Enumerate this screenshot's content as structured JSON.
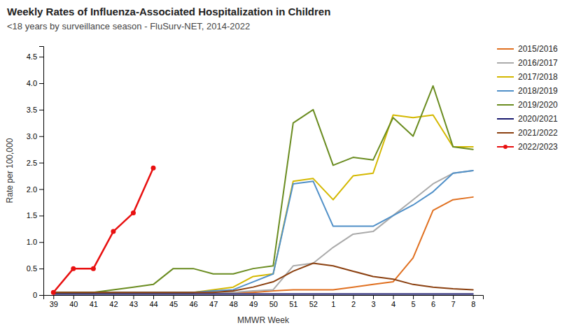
{
  "chart_data": {
    "type": "line",
    "title": "Weekly Rates of Influenza-Associated Hospitalization in Children",
    "subtitle": "<18 years by surveillance season - FluSurv-NET, 2014-2022",
    "xlabel": "MMWR Week",
    "ylabel": "Rate per 100,000",
    "categories": [
      "39",
      "40",
      "41",
      "42",
      "43",
      "44",
      "45",
      "46",
      "47",
      "48",
      "49",
      "50",
      "51",
      "52",
      "1",
      "2",
      "3",
      "4",
      "5",
      "6",
      "7",
      "8"
    ],
    "ylim": [
      0,
      4.7
    ],
    "yticks": [
      0,
      0.5,
      {
        "value": 1,
        "label": "1.0"
      },
      1.5,
      {
        "value": 2,
        "label": "2.0"
      },
      2.5,
      {
        "value": 3,
        "label": "3.0"
      },
      3.5,
      {
        "value": 4,
        "label": "4.0"
      },
      4.5
    ],
    "grid": false,
    "legend": "right",
    "series": [
      {
        "name": "2015/2016",
        "color": "#E07020",
        "values": [
          0.05,
          0.05,
          0.05,
          0.05,
          0.05,
          0.05,
          0.05,
          0.05,
          0.05,
          0.05,
          0.05,
          0.08,
          0.1,
          0.1,
          0.1,
          0.15,
          0.2,
          0.25,
          0.7,
          1.6,
          1.8,
          1.85
        ]
      },
      {
        "name": "2016/2017",
        "color": "#AAAAAA",
        "values": [
          0.05,
          0.05,
          0.05,
          0.05,
          0.05,
          0.05,
          0.05,
          0.05,
          0.05,
          0.05,
          0.08,
          0.1,
          0.55,
          0.6,
          0.9,
          1.15,
          1.2,
          1.5,
          1.8,
          2.1,
          2.3,
          2.35
        ]
      },
      {
        "name": "2017/2018",
        "color": "#D4B800",
        "values": [
          0.05,
          0.05,
          0.05,
          0.05,
          0.05,
          0.05,
          0.05,
          0.05,
          0.1,
          0.15,
          0.35,
          0.4,
          2.15,
          2.2,
          1.8,
          2.25,
          2.3,
          3.4,
          3.35,
          3.4,
          2.8,
          2.8
        ]
      },
      {
        "name": "2018/2019",
        "color": "#5090C8",
        "values": [
          0.05,
          0.05,
          0.05,
          0.05,
          0.05,
          0.05,
          0.05,
          0.05,
          0.08,
          0.1,
          0.25,
          0.4,
          2.1,
          2.15,
          1.3,
          1.3,
          1.3,
          1.5,
          1.7,
          1.95,
          2.3,
          2.35
        ]
      },
      {
        "name": "2019/2020",
        "color": "#6A8C20",
        "values": [
          0.05,
          0.05,
          0.05,
          0.1,
          0.15,
          0.2,
          0.5,
          0.5,
          0.4,
          0.4,
          0.5,
          0.55,
          3.25,
          3.5,
          2.45,
          2.6,
          2.55,
          3.35,
          3.0,
          3.95,
          2.8,
          2.75
        ]
      },
      {
        "name": "2020/2021",
        "color": "#1A1A6E",
        "values": [
          0.02,
          0.02,
          0.02,
          0.02,
          0.02,
          0.02,
          0.02,
          0.02,
          0.02,
          0.02,
          0.02,
          0.02,
          0.02,
          0.02,
          0.02,
          0.02,
          0.02,
          0.02,
          0.02,
          0.02,
          0.02,
          0.02
        ]
      },
      {
        "name": "2021/2022",
        "color": "#8B4010",
        "values": [
          0.05,
          0.05,
          0.05,
          0.05,
          0.05,
          0.05,
          0.05,
          0.05,
          0.05,
          0.08,
          0.15,
          0.25,
          0.45,
          0.6,
          0.55,
          0.45,
          0.35,
          0.3,
          0.2,
          0.15,
          0.12,
          0.1
        ]
      },
      {
        "name": "2022/2023",
        "color": "#E81010",
        "marker": "circle",
        "values": [
          0.05,
          0.5,
          0.5,
          1.2,
          1.55,
          2.4,
          null,
          null,
          null,
          null,
          null,
          null,
          null,
          null,
          null,
          null,
          null,
          null,
          null,
          null,
          null,
          null
        ]
      }
    ]
  }
}
